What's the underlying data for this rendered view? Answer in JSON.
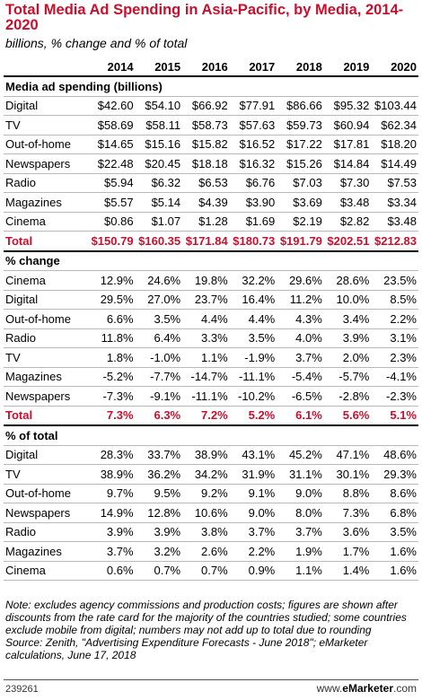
{
  "title": "Total Media Ad Spending in Asia-Pacific, by Media, 2014-2020",
  "subtitle": "billions, % change and % of total",
  "years": [
    "2014",
    "2015",
    "2016",
    "2017",
    "2018",
    "2019",
    "2020"
  ],
  "sections": [
    {
      "header": "Media ad spending (billions)",
      "rows": [
        {
          "label": "Digital",
          "values": [
            "$42.60",
            "$54.10",
            "$66.92",
            "$77.91",
            "$86.66",
            "$95.32",
            "$103.44"
          ]
        },
        {
          "label": "TV",
          "values": [
            "$58.69",
            "$58.11",
            "$58.73",
            "$57.63",
            "$59.73",
            "$60.94",
            "$62.34"
          ]
        },
        {
          "label": "Out-of-home",
          "values": [
            "$14.65",
            "$15.16",
            "$15.82",
            "$16.52",
            "$17.22",
            "$17.81",
            "$18.20"
          ]
        },
        {
          "label": "Newspapers",
          "values": [
            "$22.48",
            "$20.45",
            "$18.18",
            "$16.32",
            "$15.26",
            "$14.84",
            "$14.49"
          ]
        },
        {
          "label": "Radio",
          "values": [
            "$5.94",
            "$6.32",
            "$6.53",
            "$6.76",
            "$7.03",
            "$7.30",
            "$7.53"
          ]
        },
        {
          "label": "Magazines",
          "values": [
            "$5.57",
            "$5.14",
            "$4.39",
            "$3.90",
            "$3.69",
            "$3.48",
            "$3.34"
          ]
        },
        {
          "label": "Cinema",
          "values": [
            "$0.86",
            "$1.07",
            "$1.28",
            "$1.69",
            "$2.19",
            "$2.82",
            "$3.48"
          ]
        }
      ],
      "total": {
        "label": "Total",
        "values": [
          "$150.79",
          "$160.35",
          "$171.84",
          "$180.73",
          "$191.79",
          "$202.51",
          "$212.83"
        ]
      }
    },
    {
      "header": "% change",
      "rows": [
        {
          "label": "Cinema",
          "values": [
            "12.9%",
            "24.6%",
            "19.8%",
            "32.2%",
            "29.6%",
            "28.6%",
            "23.5%"
          ]
        },
        {
          "label": "Digital",
          "values": [
            "29.5%",
            "27.0%",
            "23.7%",
            "16.4%",
            "11.2%",
            "10.0%",
            "8.5%"
          ]
        },
        {
          "label": "Out-of-home",
          "values": [
            "6.6%",
            "3.5%",
            "4.4%",
            "4.4%",
            "4.3%",
            "3.4%",
            "2.2%"
          ]
        },
        {
          "label": "Radio",
          "values": [
            "11.8%",
            "6.4%",
            "3.3%",
            "3.5%",
            "4.0%",
            "3.9%",
            "3.1%"
          ]
        },
        {
          "label": "TV",
          "values": [
            "1.8%",
            "-1.0%",
            "1.1%",
            "-1.9%",
            "3.7%",
            "2.0%",
            "2.3%"
          ]
        },
        {
          "label": "Magazines",
          "values": [
            "-5.2%",
            "-7.7%",
            "-14.7%",
            "-11.1%",
            "-5.4%",
            "-5.7%",
            "-4.1%"
          ]
        },
        {
          "label": "Newspapers",
          "values": [
            "-7.3%",
            "-9.1%",
            "-11.1%",
            "-10.2%",
            "-6.5%",
            "-2.8%",
            "-2.3%"
          ]
        }
      ],
      "total": {
        "label": "Total",
        "values": [
          "7.3%",
          "6.3%",
          "7.2%",
          "5.2%",
          "6.1%",
          "5.6%",
          "5.1%"
        ]
      }
    },
    {
      "header": "% of total",
      "rows": [
        {
          "label": "Digital",
          "values": [
            "28.3%",
            "33.7%",
            "38.9%",
            "43.1%",
            "45.2%",
            "47.1%",
            "48.6%"
          ]
        },
        {
          "label": "TV",
          "values": [
            "38.9%",
            "36.2%",
            "34.2%",
            "31.9%",
            "31.1%",
            "30.1%",
            "29.3%"
          ]
        },
        {
          "label": "Out-of-home",
          "values": [
            "9.7%",
            "9.5%",
            "9.2%",
            "9.1%",
            "9.0%",
            "8.8%",
            "8.6%"
          ]
        },
        {
          "label": "Newspapers",
          "values": [
            "14.9%",
            "12.8%",
            "10.6%",
            "9.0%",
            "8.0%",
            "7.3%",
            "6.8%"
          ]
        },
        {
          "label": "Radio",
          "values": [
            "3.9%",
            "3.9%",
            "3.8%",
            "3.7%",
            "3.7%",
            "3.6%",
            "3.5%"
          ]
        },
        {
          "label": "Magazines",
          "values": [
            "3.7%",
            "3.2%",
            "2.6%",
            "2.2%",
            "1.9%",
            "1.7%",
            "1.6%"
          ]
        },
        {
          "label": "Cinema",
          "values": [
            "0.6%",
            "0.7%",
            "0.7%",
            "0.9%",
            "1.1%",
            "1.4%",
            "1.6%"
          ]
        }
      ]
    }
  ],
  "note": "Note: excludes agency commissions and production costs; figures are shown after discounts from the rate card for the majority of the countries studied; some countries exclude mobile from digital; numbers may not add up to total due to rounding",
  "source": "Source: Zenith, \"Advertising Expenditure Forecasts - June 2018\"; eMarketer calculations, June 17, 2018",
  "footer": {
    "id": "239261",
    "brand_prefix": "www.",
    "brand_name": "eMarketer",
    "brand_suffix": ".com"
  },
  "colors": {
    "accent": "#c8102e"
  }
}
